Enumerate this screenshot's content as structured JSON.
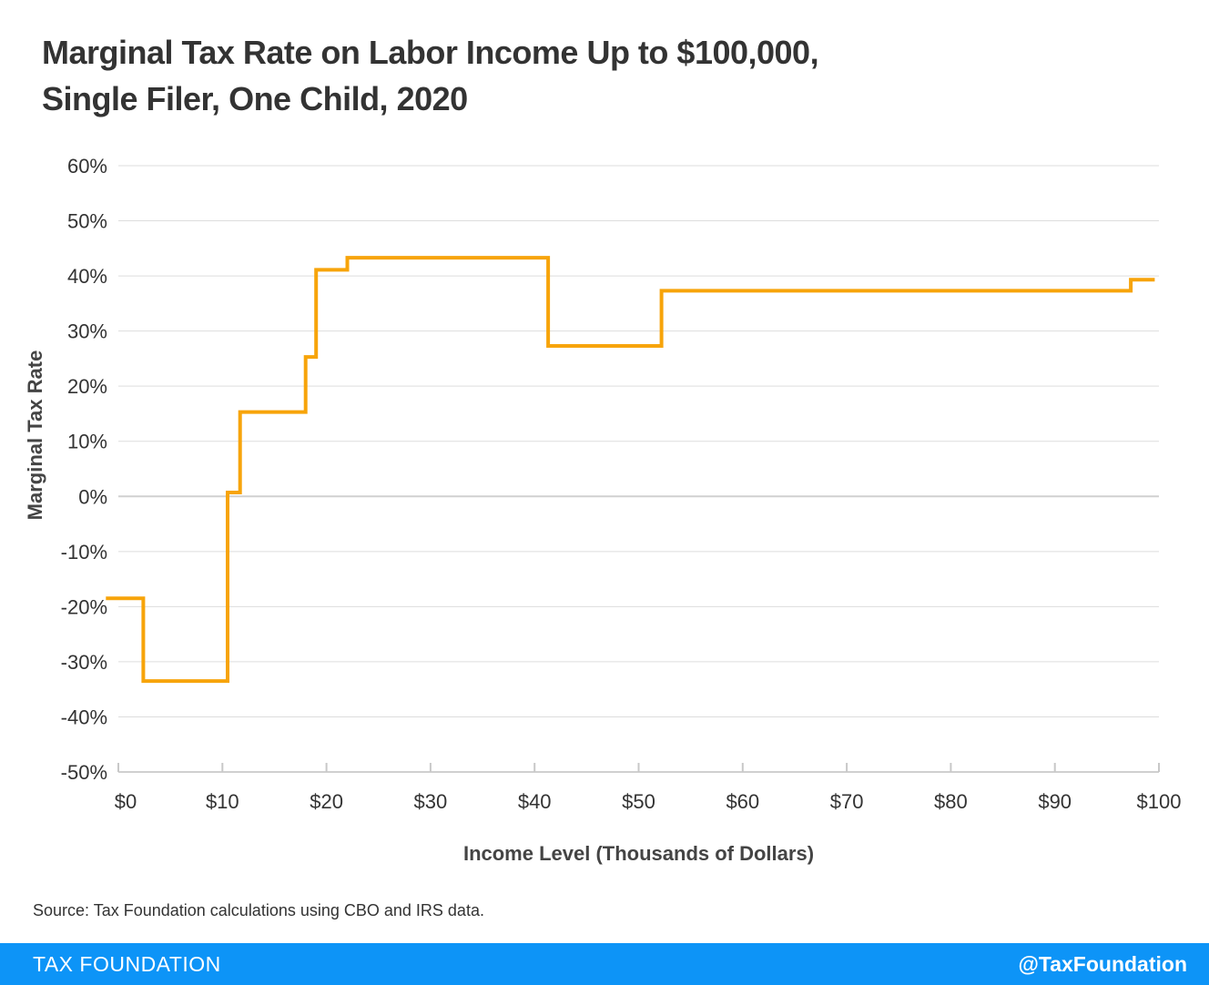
{
  "title_lines": [
    "Marginal Tax Rate on Labor Income Up to $100,000,",
    "Single Filer, One Child, 2020"
  ],
  "source": "Source: Tax Foundation calculations using CBO and IRS data.",
  "footer": {
    "brand": "TAX FOUNDATION",
    "handle": "@TaxFoundation"
  },
  "colors": {
    "line": "#f7a40a",
    "footer": "#0d94f7",
    "grid": "#dddddd",
    "text": "#333333"
  },
  "chart_data": {
    "type": "line",
    "title": "Marginal Tax Rate on Labor Income Up to $100,000, Single Filer, One Child, 2020",
    "xlabel": "Income Level (Thousands of Dollars)",
    "ylabel": "Marginal Tax Rate",
    "xlim": [
      0,
      100
    ],
    "ylim": [
      -50,
      60
    ],
    "x_ticks": [
      0,
      10,
      20,
      30,
      40,
      50,
      60,
      70,
      80,
      90,
      100
    ],
    "x_tick_labels": [
      "$0",
      "$10",
      "$20",
      "$30",
      "$40",
      "$50",
      "$60",
      "$70",
      "$80",
      "$90",
      "$100"
    ],
    "y_ticks": [
      60,
      50,
      40,
      30,
      20,
      10,
      0,
      -10,
      -20,
      -30,
      -40,
      -50
    ],
    "y_tick_labels": [
      "60%",
      "50%",
      "40%",
      "30%",
      "20%",
      "10%",
      "0%",
      "-10%",
      "-20%",
      "-30%",
      "-40%",
      "-50%"
    ],
    "grid": true,
    "series": [
      {
        "name": "Marginal Tax Rate",
        "step": true,
        "x": [
          -1.2,
          2.4,
          10.5,
          11.7,
          18.0,
          19.0,
          22.0,
          41.3,
          52.2,
          97.3,
          99.6
        ],
        "values": [
          -18.5,
          -33.5,
          0.7,
          15.3,
          25.3,
          41.1,
          43.3,
          27.3,
          37.3,
          39.3,
          39.3
        ]
      }
    ]
  }
}
